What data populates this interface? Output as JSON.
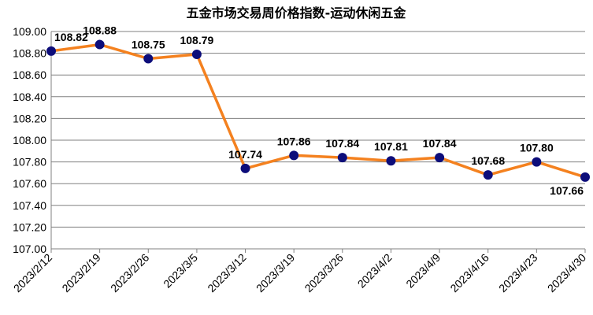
{
  "chart_data": {
    "type": "line",
    "title": "五金市场交易周价格指数-运动休闲五金",
    "xlabel": "",
    "ylabel": "",
    "categories": [
      "2023/2/12",
      "2023/2/19",
      "2023/2/26",
      "2023/3/5",
      "2023/3/12",
      "2023/3/19",
      "2023/3/26",
      "2023/4/2",
      "2023/4/9",
      "2023/4/16",
      "2023/4/23",
      "2023/4/30"
    ],
    "series": [
      {
        "values": [
          108.82,
          108.88,
          108.75,
          108.79,
          107.74,
          107.86,
          107.84,
          107.81,
          107.84,
          107.68,
          107.8,
          107.66
        ],
        "labels": [
          "108.82",
          "108.88",
          "108.75",
          "108.79",
          "107.74",
          "107.86",
          "107.84",
          "107.81",
          "107.84",
          "107.68",
          "107.80",
          "107.66"
        ]
      }
    ],
    "ylim": [
      107.0,
      109.0
    ],
    "yticks": [
      "107.00",
      "107.20",
      "107.40",
      "107.60",
      "107.80",
      "108.00",
      "108.20",
      "108.40",
      "108.60",
      "108.80",
      "109.00"
    ],
    "grid": true,
    "legend": "none",
    "colors": {
      "line": "#F4811F",
      "marker": "#0D0D7A",
      "grid": "#808080",
      "axis": "#808080"
    }
  }
}
